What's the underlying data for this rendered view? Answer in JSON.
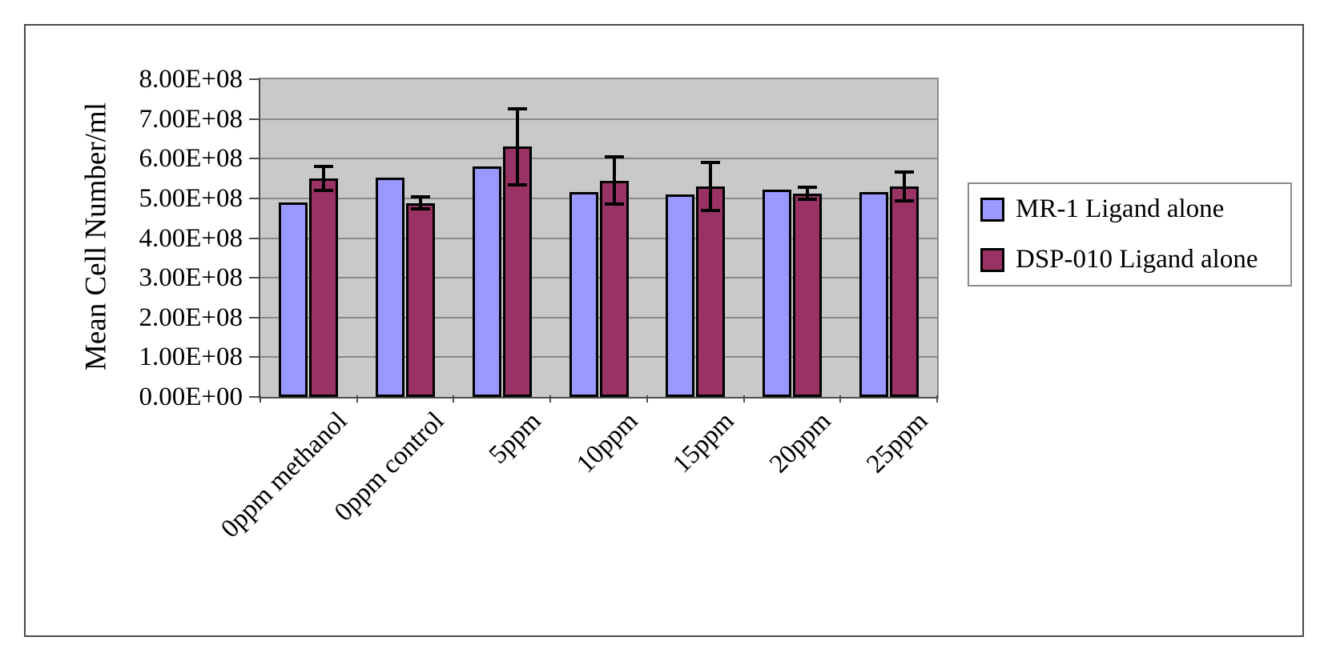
{
  "chart_data": {
    "type": "bar",
    "title": "",
    "xlabel": "",
    "ylabel": "Mean Cell Number/ml",
    "categories": [
      "0ppm methanol",
      "0ppm control",
      "5ppm",
      "10ppm",
      "15ppm",
      "20ppm",
      "25ppm"
    ],
    "series": [
      {
        "name": "MR-1 Ligand alone",
        "color": "#9999FF",
        "values": [
          490000000.0,
          552000000.0,
          580000000.0,
          515000000.0,
          510000000.0,
          522000000.0,
          516000000.0
        ]
      },
      {
        "name": "DSP-010 Ligand alone",
        "color": "#993366",
        "values": [
          550000000.0,
          488000000.0,
          630000000.0,
          545000000.0,
          530000000.0,
          512000000.0,
          530000000.0
        ],
        "errors": [
          30000000.0,
          15000000.0,
          95000000.0,
          60000000.0,
          60000000.0,
          15000000.0,
          36000000.0
        ]
      }
    ],
    "ylim": [
      0,
      800000000.0
    ],
    "y_tick_step": 100000000.0,
    "y_tick_labels": [
      "0.00E+00",
      "1.00E+08",
      "2.00E+08",
      "3.00E+08",
      "4.00E+08",
      "5.00E+08",
      "6.00E+08",
      "7.00E+08",
      "8.00E+08"
    ],
    "grid": true,
    "legend_position": "right",
    "plot_bg": "#C9C9C9",
    "gridline_color": "#8a8a8a",
    "axis_color": "#4d4d4d",
    "error_bar_color": "#000000"
  }
}
